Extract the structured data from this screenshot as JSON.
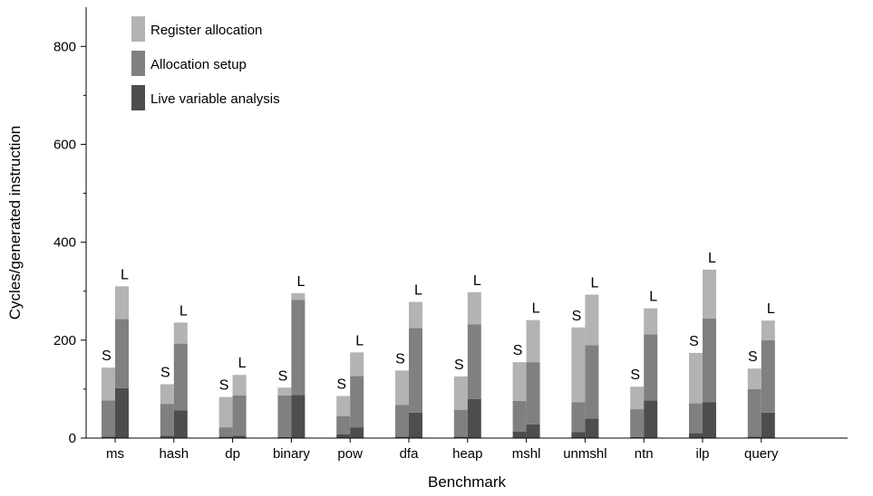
{
  "colors": {
    "register_allocation": "#b3b3b3",
    "allocation_setup": "#808080",
    "live_variable_analysis": "#4d4d4d",
    "axis": "#000000",
    "background": "#ffffff"
  },
  "chart_data": {
    "type": "bar",
    "stacked": true,
    "grouped": true,
    "xlabel": "Benchmark",
    "ylabel": "Cycles/generated instruction",
    "ylim": [
      0,
      880
    ],
    "yticks": [
      0,
      200,
      400,
      600,
      800
    ],
    "grid": false,
    "legend_position": "top-left",
    "legend": [
      "Register allocation",
      "Allocation setup",
      "Live variable analysis"
    ],
    "bar_labels": [
      "S",
      "L"
    ],
    "categories": [
      "ms",
      "hash",
      "dp",
      "binary",
      "pow",
      "dfa",
      "heap",
      "mshl",
      "unmshl",
      "ntn",
      "ilp",
      "query"
    ],
    "series": [
      {
        "name": "Live variable analysis",
        "S": [
          3,
          5,
          3,
          2,
          8,
          3,
          3,
          13,
          12,
          2,
          10,
          3
        ],
        "L": [
          102,
          57,
          5,
          88,
          22,
          52,
          80,
          28,
          40,
          77,
          73,
          52
        ]
      },
      {
        "name": "Allocation setup",
        "S": [
          74,
          65,
          19,
          85,
          37,
          65,
          55,
          63,
          61,
          57,
          61,
          97
        ],
        "L": [
          141,
          136,
          82,
          194,
          105,
          173,
          152,
          127,
          150,
          135,
          171,
          148
        ]
      },
      {
        "name": "Register allocation",
        "S": [
          67,
          40,
          62,
          16,
          41,
          70,
          68,
          79,
          153,
          46,
          103,
          42
        ],
        "L": [
          67,
          43,
          42,
          14,
          48,
          53,
          66,
          86,
          103,
          53,
          100,
          40
        ]
      }
    ]
  }
}
